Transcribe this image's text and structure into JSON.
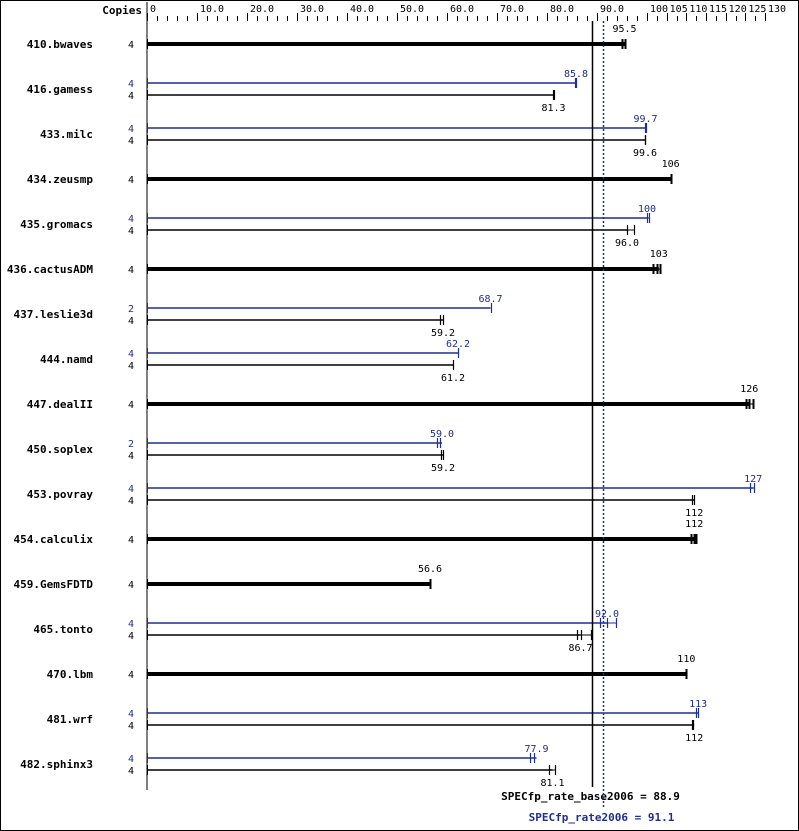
{
  "chart_data": {
    "type": "bar",
    "orientation": "horizontal",
    "header_label": "Copies",
    "axis_ticks": [
      "0",
      "10.0",
      "20.0",
      "30.0",
      "40.0",
      "50.0",
      "60.0",
      "70.0",
      "80.0",
      "90.0",
      "100",
      "105",
      "110",
      "115",
      "120",
      "125",
      "130"
    ],
    "xlim": [
      0,
      130
    ],
    "colors": {
      "base": "#000000",
      "peak": "#1f2f8f"
    },
    "reference_lines": [
      {
        "series": "base",
        "label": "SPECfp_rate_base2006 = 88.9",
        "value": 88.9,
        "style": "solid"
      },
      {
        "series": "peak",
        "label": "SPECfp_rate2006 = 91.1",
        "value": 91.1,
        "style": "dotted"
      }
    ],
    "benchmarks": [
      {
        "name": "410.bwaves",
        "bars": [
          {
            "series": "combined",
            "copies": "4",
            "value": 95.5,
            "label": "95.5",
            "runs": [
              95.0,
              95.5
            ]
          }
        ]
      },
      {
        "name": "416.gamess",
        "bars": [
          {
            "series": "peak",
            "copies": "4",
            "value": 85.8,
            "label": "85.8",
            "runs": [
              85.6,
              85.8
            ]
          },
          {
            "series": "base",
            "copies": "4",
            "value": 81.3,
            "label": "81.3",
            "runs": [
              81.2,
              81.3
            ]
          }
        ]
      },
      {
        "name": "433.milc",
        "bars": [
          {
            "series": "peak",
            "copies": "4",
            "value": 99.7,
            "label": "99.7",
            "runs": [
              99.6,
              99.7
            ]
          },
          {
            "series": "base",
            "copies": "4",
            "value": 99.6,
            "label": "99.6",
            "runs": [
              99.5,
              99.6
            ]
          }
        ]
      },
      {
        "name": "434.zeusmp",
        "bars": [
          {
            "series": "combined",
            "copies": "4",
            "value": 106,
            "label": "106",
            "runs": [
              106
            ]
          }
        ]
      },
      {
        "name": "435.gromacs",
        "bars": [
          {
            "series": "peak",
            "copies": "4",
            "value": 100,
            "label": "100",
            "runs": [
              100.0,
              100.6
            ]
          },
          {
            "series": "base",
            "copies": "4",
            "value": 96.0,
            "label": "96.0",
            "runs": [
              96.0,
              97.4
            ]
          }
        ]
      },
      {
        "name": "436.cactusADM",
        "bars": [
          {
            "series": "combined",
            "copies": "4",
            "value": 103,
            "label": "103",
            "runs": [
              101.5,
              102.5,
              103.3
            ]
          }
        ]
      },
      {
        "name": "437.leslie3d",
        "bars": [
          {
            "series": "peak",
            "copies": "2",
            "value": 68.7,
            "label": "68.7",
            "runs": [
              68.7
            ]
          },
          {
            "series": "base",
            "copies": "4",
            "value": 59.2,
            "label": "59.2",
            "runs": [
              58.6,
              59.2
            ]
          }
        ]
      },
      {
        "name": "444.namd",
        "bars": [
          {
            "series": "peak",
            "copies": "4",
            "value": 62.2,
            "label": "62.2",
            "runs": [
              62.2
            ]
          },
          {
            "series": "base",
            "copies": "4",
            "value": 61.2,
            "label": "61.2",
            "runs": [
              61.2
            ]
          }
        ]
      },
      {
        "name": "447.dealII",
        "bars": [
          {
            "series": "combined",
            "copies": "4",
            "value": 126,
            "label": "126",
            "runs": [
              125.2,
              126.0,
              126.9
            ]
          }
        ]
      },
      {
        "name": "450.soplex",
        "bars": [
          {
            "series": "peak",
            "copies": "2",
            "value": 59.0,
            "label": "59.0",
            "runs": [
              58.0,
              58.6
            ]
          },
          {
            "series": "base",
            "copies": "4",
            "value": 59.2,
            "label": "59.2",
            "runs": [
              58.8,
              59.2
            ]
          }
        ]
      },
      {
        "name": "453.povray",
        "bars": [
          {
            "series": "peak",
            "copies": "4",
            "value": 127,
            "label": "127",
            "runs": [
              126.3,
              127.3
            ]
          },
          {
            "series": "base",
            "copies": "4",
            "value": 112,
            "label": "112",
            "runs": [
              111.5,
              112.0
            ]
          }
        ]
      },
      {
        "name": "454.calculix",
        "bars": [
          {
            "series": "combined",
            "copies": "4",
            "value": 112,
            "label": "112",
            "runs": [
              111.2,
              112.0,
              112.5
            ]
          }
        ]
      },
      {
        "name": "459.GemsFDTD",
        "bars": [
          {
            "series": "combined",
            "copies": "4",
            "value": 56.6,
            "label": "56.6",
            "runs": [
              56.6
            ]
          }
        ]
      },
      {
        "name": "465.tonto",
        "bars": [
          {
            "series": "peak",
            "copies": "4",
            "value": 92.0,
            "label": "92.0",
            "runs": [
              90.6,
              92.0,
              93.8
            ]
          },
          {
            "series": "base",
            "copies": "4",
            "value": 86.7,
            "label": "86.7",
            "runs": [
              86.0,
              86.7,
              88.8
            ]
          }
        ]
      },
      {
        "name": "470.lbm",
        "bars": [
          {
            "series": "combined",
            "copies": "4",
            "value": 110,
            "label": "110",
            "runs": [
              110
            ]
          }
        ]
      },
      {
        "name": "481.wrf",
        "bars": [
          {
            "series": "peak",
            "copies": "4",
            "value": 113,
            "label": "113",
            "runs": [
              112.4,
              113.0
            ]
          },
          {
            "series": "base",
            "copies": "4",
            "value": 112,
            "label": "112",
            "runs": [
              111.4,
              111.8
            ]
          }
        ]
      },
      {
        "name": "482.sphinx3",
        "bars": [
          {
            "series": "peak",
            "copies": "4",
            "value": 77.9,
            "label": "77.9",
            "runs": [
              76.6,
              77.4
            ]
          },
          {
            "series": "base",
            "copies": "4",
            "value": 81.1,
            "label": "81.1",
            "runs": [
              80.4,
              81.6
            ]
          }
        ]
      }
    ]
  }
}
